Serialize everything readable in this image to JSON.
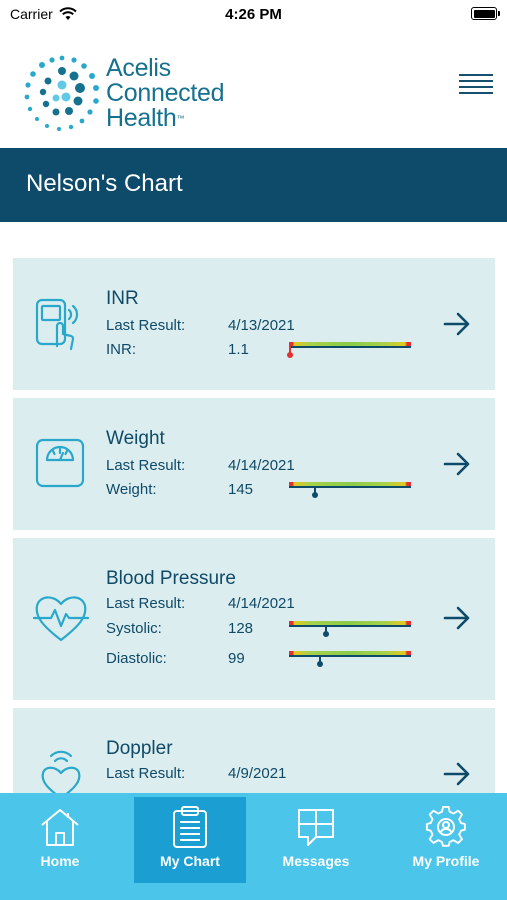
{
  "status_bar": {
    "carrier": "Carrier",
    "time": "4:26 PM"
  },
  "header": {
    "logo_lines": [
      "Acelis",
      "Connected",
      "Health"
    ],
    "logo_tm": "™"
  },
  "page": {
    "title": "Nelson's Chart"
  },
  "cards": [
    {
      "title": "INR",
      "icon": "inr-device-icon",
      "last_result_label": "Last Result:",
      "last_result_date": "4/13/2021",
      "readings": [
        {
          "label": "INR:",
          "value": "1.1",
          "gauge_fraction": 0.0
        }
      ]
    },
    {
      "title": "Weight",
      "icon": "scale-icon",
      "last_result_label": "Last Result:",
      "last_result_date": "4/14/2021",
      "readings": [
        {
          "label": "Weight:",
          "value": "145",
          "gauge_fraction": 0.21
        }
      ]
    },
    {
      "title": "Blood Pressure",
      "icon": "heart-pulse-icon",
      "last_result_label": "Last Result:",
      "last_result_date": "4/14/2021",
      "readings": [
        {
          "label": "Systolic:",
          "value": "128",
          "gauge_fraction": 0.3
        },
        {
          "label": "Diastolic:",
          "value": "99",
          "gauge_fraction": 0.25
        }
      ]
    },
    {
      "title": "Doppler",
      "icon": "heart-signal-icon",
      "last_result_label": "Last Result:",
      "last_result_date": "4/9/2021"
    }
  ],
  "tabs": [
    {
      "label": "Home",
      "icon": "home-icon",
      "active": false
    },
    {
      "label": "My Chart",
      "icon": "clipboard-icon",
      "active": true
    },
    {
      "label": "Messages",
      "icon": "messages-icon",
      "active": false
    },
    {
      "label": "My Profile",
      "icon": "gear-icon",
      "active": false
    }
  ],
  "colors": {
    "primary": "#0e4a69",
    "card_bg": "#dcedf0",
    "tab_bar": "#4bc5ea",
    "tab_active": "#1b9fd3",
    "gauge_red": "#e53030",
    "gauge_green": "#8ccc4a"
  }
}
